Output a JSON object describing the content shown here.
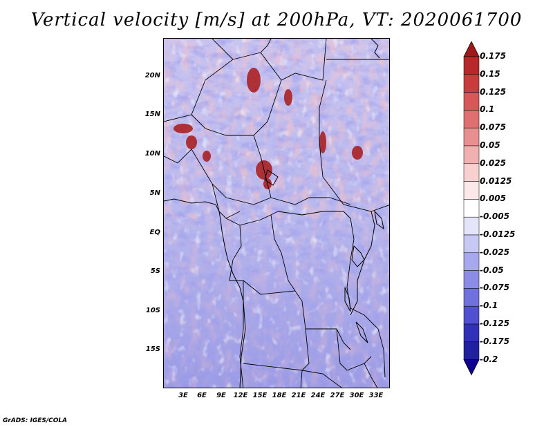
{
  "title": "Vertical velocity [m/s] at 200hPa, VT: 2020061700",
  "footer": "GrADS: IGES/COLA",
  "y_ticks": [
    "20N",
    "15N",
    "10N",
    "5N",
    "EQ",
    "5S",
    "10S",
    "15S"
  ],
  "x_ticks": [
    "3E",
    "6E",
    "9E",
    "12E",
    "15E",
    "18E",
    "21E",
    "24E",
    "27E",
    "30E",
    "33E"
  ],
  "colorbar": {
    "labels": [
      "0.175",
      "0.15",
      "0.125",
      "0.1",
      "0.075",
      "0.05",
      "0.025",
      "0.0125",
      "0.005",
      "-0.005",
      "-0.0125",
      "-0.025",
      "-0.05",
      "-0.075",
      "-0.1",
      "-0.125",
      "-0.175",
      "-0.2"
    ],
    "colors": [
      "#a01818",
      "#b82828",
      "#c83c3c",
      "#d85858",
      "#e07070",
      "#e89090",
      "#f0b0b0",
      "#f8d0d0",
      "#fce8e8",
      "#ffffff",
      "#e4e4fa",
      "#c8c8f4",
      "#a8a8ee",
      "#8c8ce6",
      "#7070de",
      "#5050d0",
      "#3030b8",
      "#2020a0",
      "#100090"
    ]
  },
  "colors": {
    "positive_strong": "#b82020",
    "positive_light": "#f0a0a0",
    "negative_light": "#b8b8f0",
    "negative_strong": "#5050d0"
  }
}
